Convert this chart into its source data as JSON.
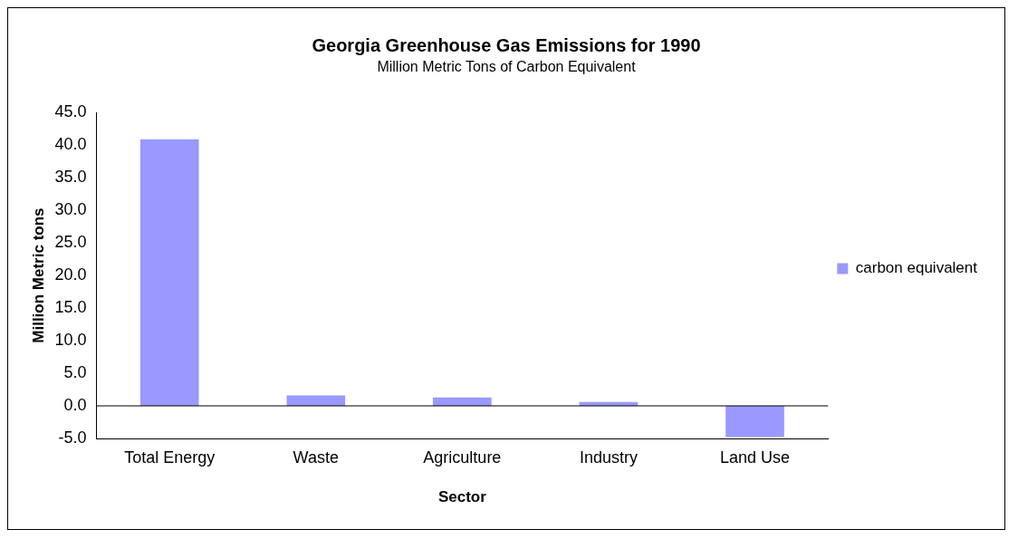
{
  "chart_data": {
    "type": "bar",
    "title": "Georgia Greenhouse Gas Emissions for 1990",
    "subtitle": "Million Metric Tons of Carbon Equivalent",
    "xlabel": "Sector",
    "ylabel": "Million Metric tons",
    "categories": [
      "Total Energy",
      "Waste",
      "Agriculture",
      "Industry",
      "Land Use"
    ],
    "series": [
      {
        "name": "carbon equivalent",
        "color": "#9999ff",
        "values": [
          40.9,
          1.6,
          1.3,
          0.6,
          -4.8
        ]
      }
    ],
    "ylim": [
      -5,
      45
    ],
    "yticks": [
      {
        "value": -5,
        "label": "-5.0"
      },
      {
        "value": 0,
        "label": "0.0"
      },
      {
        "value": 5,
        "label": "5.0"
      },
      {
        "value": 10,
        "label": "10.0"
      },
      {
        "value": 15,
        "label": "15.0"
      },
      {
        "value": 20,
        "label": "20.0"
      },
      {
        "value": 25,
        "label": "25.0"
      },
      {
        "value": 30,
        "label": "30.0"
      },
      {
        "value": 35,
        "label": "35.0"
      },
      {
        "value": 40,
        "label": "40.0"
      },
      {
        "value": 45,
        "label": "45.0"
      }
    ],
    "ref_lines": [
      {
        "axis": "y",
        "value": 0,
        "color": "#000000"
      }
    ],
    "grid": false,
    "legend": "right"
  }
}
